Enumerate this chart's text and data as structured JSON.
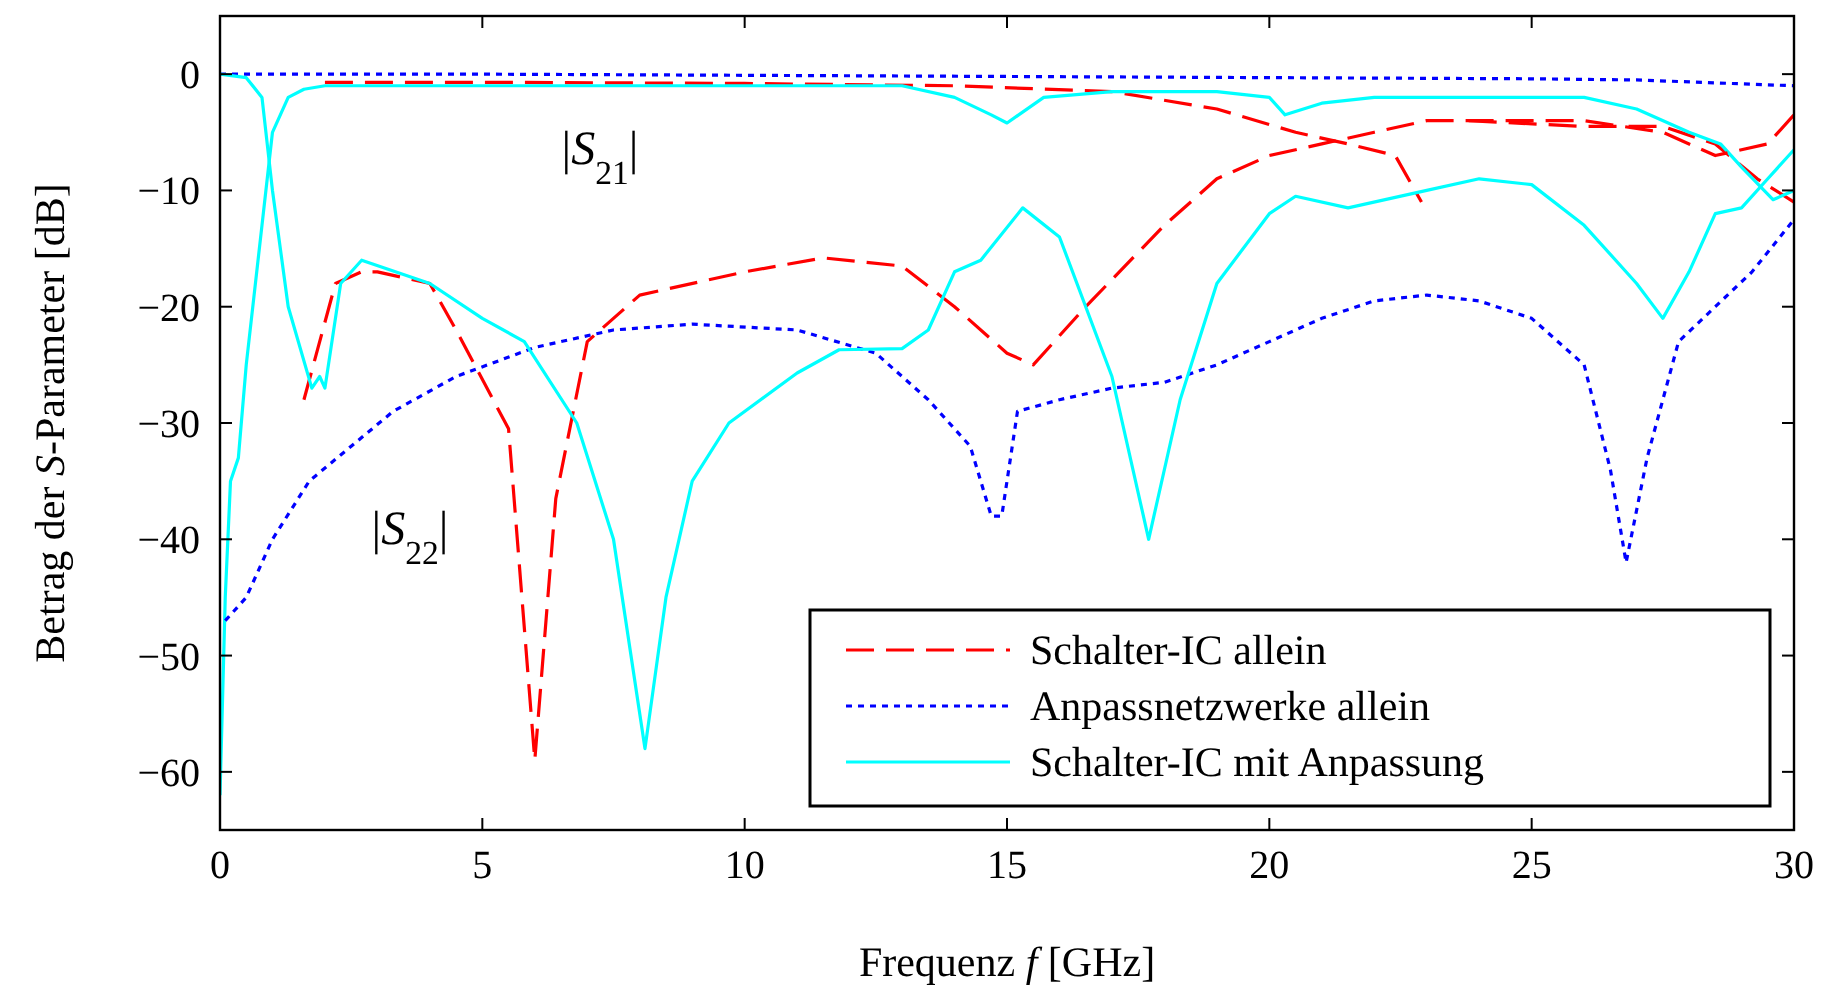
{
  "chart_data": {
    "type": "line",
    "xlabel": "Frequenz f [GHz]",
    "ylabel": "Betrag der S-Parameter [dB]",
    "xlim": [
      0,
      30
    ],
    "ylim": [
      -65,
      5
    ],
    "xticks": [
      0,
      5,
      10,
      15,
      20,
      25,
      30
    ],
    "yticks": [
      -60,
      -50,
      -40,
      -30,
      -20,
      -10,
      0
    ],
    "grid": false,
    "legend": "bottom right",
    "annotations": [
      "|S$_{21}$|",
      "|S$_{22}$|"
    ],
    "series": [
      {
        "name": "Schalter-IC allein",
        "color": "#ff0000",
        "line_style": "dashed",
        "x": [
          2,
          5,
          10,
          14,
          17,
          19,
          20.5,
          21.5,
          22.4,
          22.9,
          23.3,
          23.8,
          26,
          27.5,
          28.5,
          29.3,
          30
        ],
        "values": [
          -0.7,
          -0.7,
          -0.8,
          -1,
          -1.5,
          -3,
          -5,
          -6,
          -7,
          -11,
          null,
          -4,
          -4.5,
          -4.5,
          -6,
          -9,
          -11
        ]
      },
      {
        "name": "Anpassnetzwerke allein",
        "color": "#0000ff",
        "line_style": "dotted",
        "x": [
          0,
          5,
          10,
          15,
          20,
          25,
          27,
          30
        ],
        "values": [
          0,
          0,
          -0.1,
          -0.2,
          -0.3,
          -0.4,
          -0.5,
          -1
        ]
      },
      {
        "name": "Schalter-IC mit Anpassung",
        "color": "#00ffff",
        "line_style": "solid",
        "x": [
          0,
          0.1,
          0.2,
          0.35,
          0.5,
          0.8,
          1.0,
          1.3,
          1.6,
          2,
          5,
          10,
          13,
          14,
          14.7,
          15,
          15.7,
          17,
          19,
          20,
          20.3,
          21,
          22,
          26,
          27,
          28,
          28.6,
          29,
          29.6,
          30
        ],
        "values": [
          -62,
          -45,
          -35,
          -33,
          -25,
          -13,
          -5,
          -2,
          -1.3,
          -1,
          -1,
          -1,
          -1,
          -2,
          -3.5,
          -4.2,
          -2,
          -1.5,
          -1.5,
          -2,
          -3.5,
          -2.5,
          -2,
          -2,
          -3,
          -5,
          -6,
          -8,
          -10.8,
          -10
        ]
      },
      {
        "color": "#ff0000",
        "line_style": "dashed",
        "x": [
          1.6,
          2.2,
          2.7,
          3,
          4,
          4.5,
          5.5,
          6.0,
          6.4,
          7,
          8,
          10,
          11.5,
          13,
          14,
          15,
          15.5,
          16.5,
          18,
          19,
          20,
          21,
          22,
          23,
          26,
          27.5,
          28.5,
          29.5,
          30
        ],
        "values": [
          -28,
          -18,
          -17,
          -17,
          -18,
          -22,
          -30.5,
          -59,
          -36.5,
          -23,
          -19,
          -17,
          -15.8,
          -16.5,
          -20,
          -24,
          -25,
          -20,
          -13,
          -9,
          -7,
          -6,
          -5,
          -4,
          -4,
          -5,
          -7,
          -6,
          -3.5
        ]
      },
      {
        "color": "#0000ff",
        "line_style": "dotted",
        "x": [
          0.1,
          0.5,
          1,
          1.7,
          2.5,
          3.3,
          4.5,
          6,
          7.5,
          9,
          11,
          12.5,
          13.5,
          14.3,
          14.7,
          14.9,
          15.2,
          16,
          17,
          18,
          19,
          20,
          21,
          22,
          23,
          24,
          25,
          26,
          26.5,
          26.8,
          27.2,
          27.8,
          28.5,
          29.2,
          30
        ],
        "values": [
          -47,
          -45,
          -40,
          -35,
          -32,
          -29,
          -26,
          -23.5,
          -22,
          -21.5,
          -22,
          -24,
          -28,
          -32,
          -38,
          -38,
          -29,
          -28,
          -27,
          -26.5,
          -25,
          -23,
          -21,
          -19.5,
          -19,
          -19.5,
          -21,
          -25,
          -34,
          -42,
          -33,
          -23,
          -20,
          -17,
          -12.5
        ]
      },
      {
        "color": "#00ffff",
        "line_style": "solid",
        "x": [
          0,
          0.5,
          0.8,
          1.0,
          1.3,
          1.75,
          1.9,
          2.0,
          2.3,
          2.7,
          4,
          5,
          5.8,
          6.8,
          7.5,
          8.1,
          8.5,
          9,
          9.7,
          11,
          11.8,
          13,
          13.5,
          14,
          14.5,
          15.3,
          16,
          17,
          17.7,
          18.3,
          19,
          20,
          20.5,
          21.5,
          23,
          24,
          25,
          26,
          27,
          27.5,
          28,
          28.5,
          29,
          29.5,
          30
        ],
        "values": [
          0,
          -0.3,
          -2,
          -10,
          -20,
          -27,
          -26,
          -27,
          -18,
          -16,
          -18,
          -21,
          -23,
          -30,
          -40,
          -58,
          -45,
          -35,
          -30,
          -25.7,
          -23.7,
          -23.6,
          -22,
          -17,
          -16,
          -11.5,
          -14,
          -26,
          -40,
          -28,
          -18,
          -12,
          -10.5,
          -11.5,
          -10,
          -9,
          -9.5,
          -13,
          -18,
          -21,
          -17,
          -12,
          -11.5,
          -9,
          -6.5
        ]
      }
    ]
  }
}
